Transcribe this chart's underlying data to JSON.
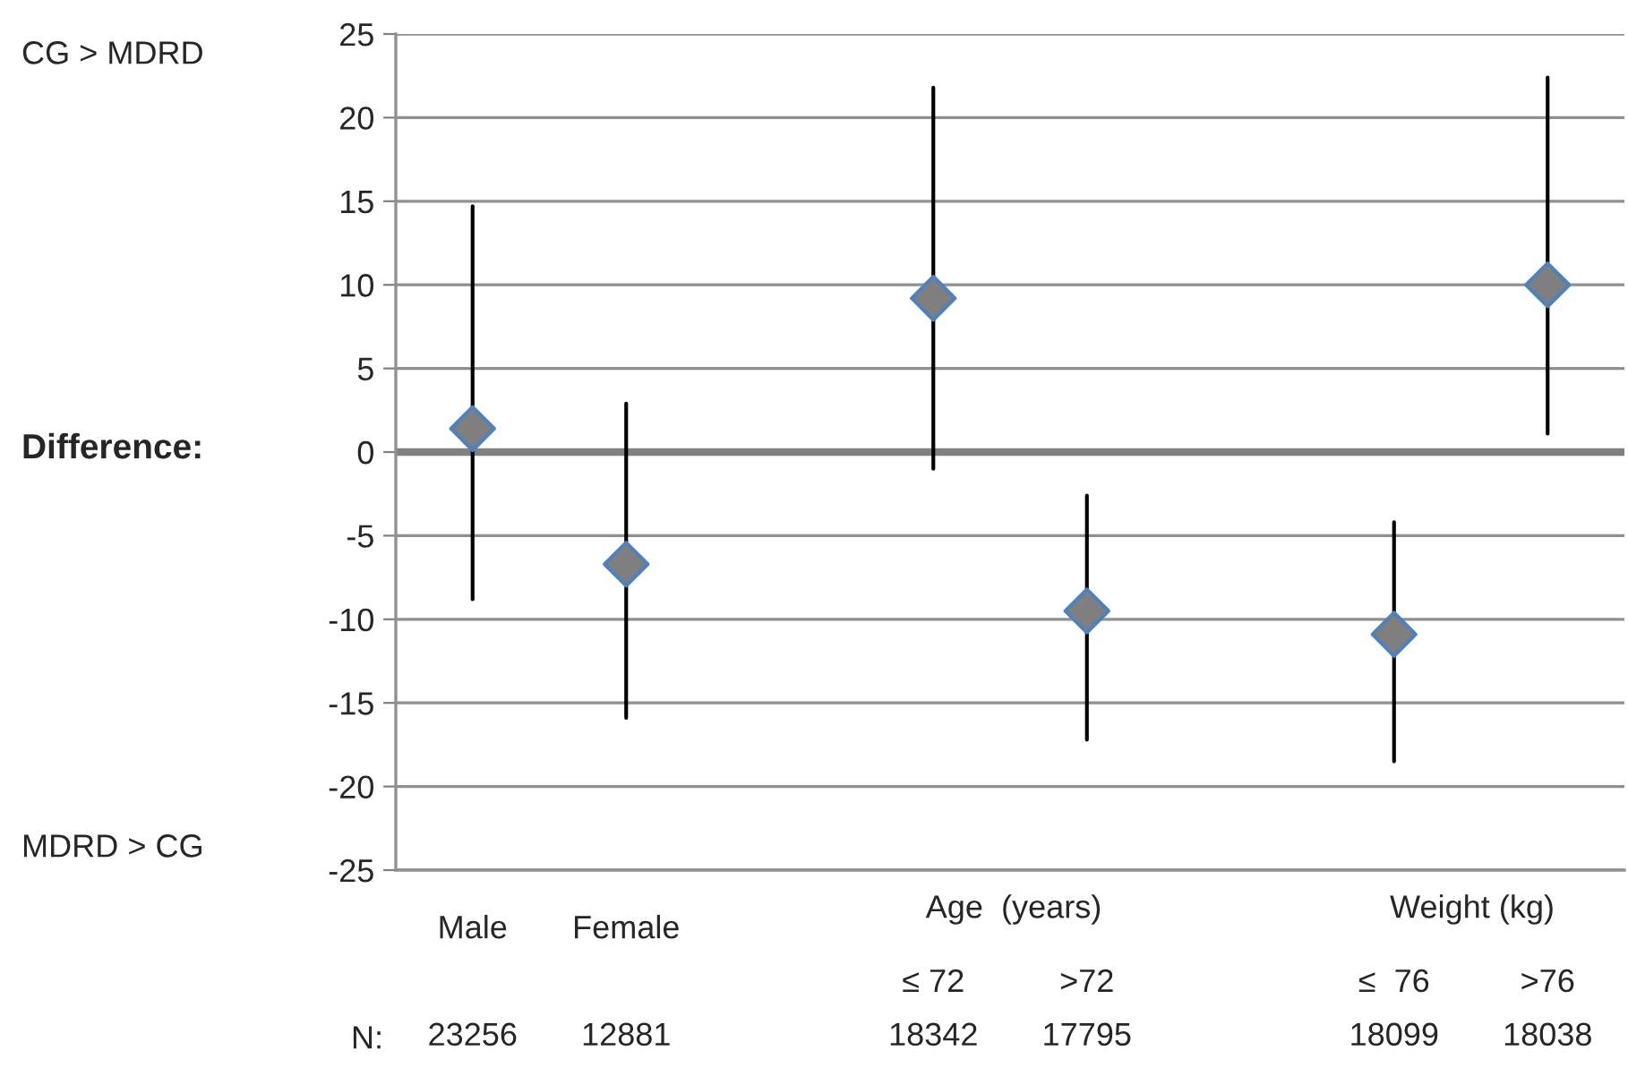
{
  "chart_data": {
    "type": "scatter",
    "categories": [
      "Male\n\n23256",
      "Female\n\n12881",
      null,
      "\n≤ 72\n18342",
      "\n>72\n17795",
      null,
      "\n≤  76\n18099",
      "\n>76\n18038"
    ],
    "series": [
      {
        "color": "#7f7f7f",
        "values": [
          1.4,
          -6.7,
          null,
          9.2,
          -9.5,
          null,
          -10.9,
          10.0
        ],
        "errors": [
          [
            -8.8,
            14.7
          ],
          [
            -15.9,
            2.9
          ],
          null,
          [
            -1.0,
            21.8
          ],
          [
            -17.2,
            -2.6
          ],
          null,
          [
            -18.5,
            -4.2
          ],
          [
            1.1,
            22.4
          ]
        ]
      }
    ],
    "marker": "diamond",
    "ylim": [
      -25,
      25
    ],
    "yticks": [
      -25,
      -20,
      -15,
      -10,
      -5,
      0,
      5,
      10,
      15,
      20,
      25
    ],
    "grid": "y",
    "ref_lines": [
      {
        "axis": "y",
        "value": 0,
        "label": null,
        "color": "#808080"
      }
    ],
    "annotations": [
      "CG > MDRD",
      "Difference:",
      "MDRD > CG",
      "Age  (years)",
      "Weight (kg)",
      "N:"
    ]
  }
}
